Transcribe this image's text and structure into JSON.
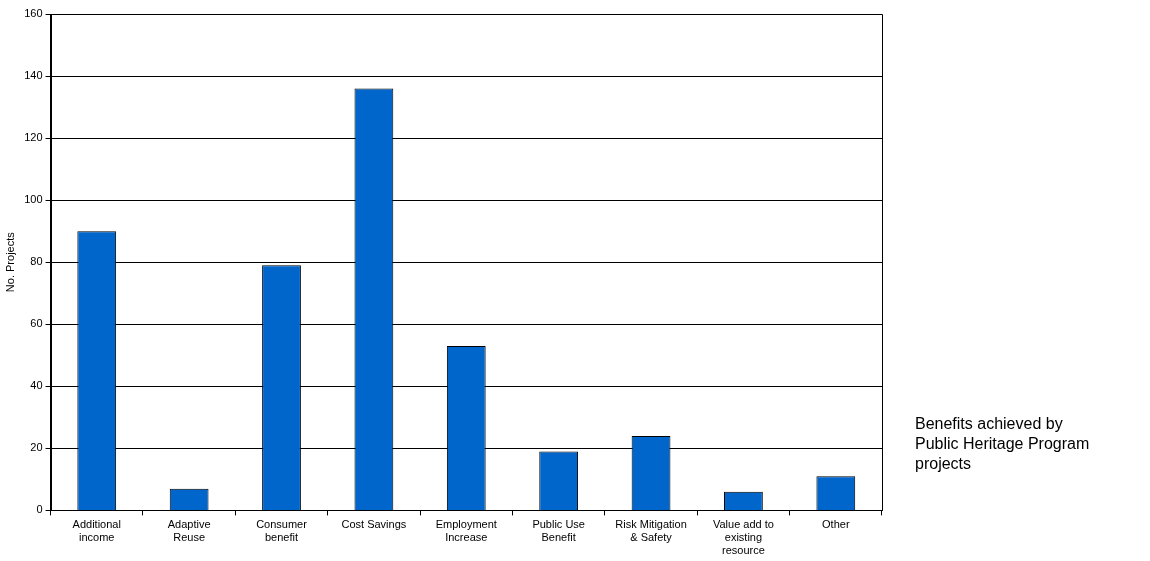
{
  "chart_data": {
    "type": "bar",
    "title": "Benefits achieved by Public Heritage Program projects",
    "ylabel": "No. Projects",
    "categories": [
      "Additional income",
      "Adaptive Reuse",
      "Consumer benefit",
      "Cost Savings",
      "Employment Increase",
      "Public Use Benefit",
      "Risk Mitigation & Safety",
      "Value add to existing resource",
      "Other"
    ],
    "values": [
      90,
      7,
      79,
      136,
      53,
      19,
      24,
      6,
      11
    ],
    "color": "#0066cc",
    "ylim": [
      0,
      160
    ],
    "yticks": [
      0,
      20,
      40,
      60,
      80,
      100,
      120,
      140,
      160
    ],
    "grid": "y",
    "legend": false
  }
}
